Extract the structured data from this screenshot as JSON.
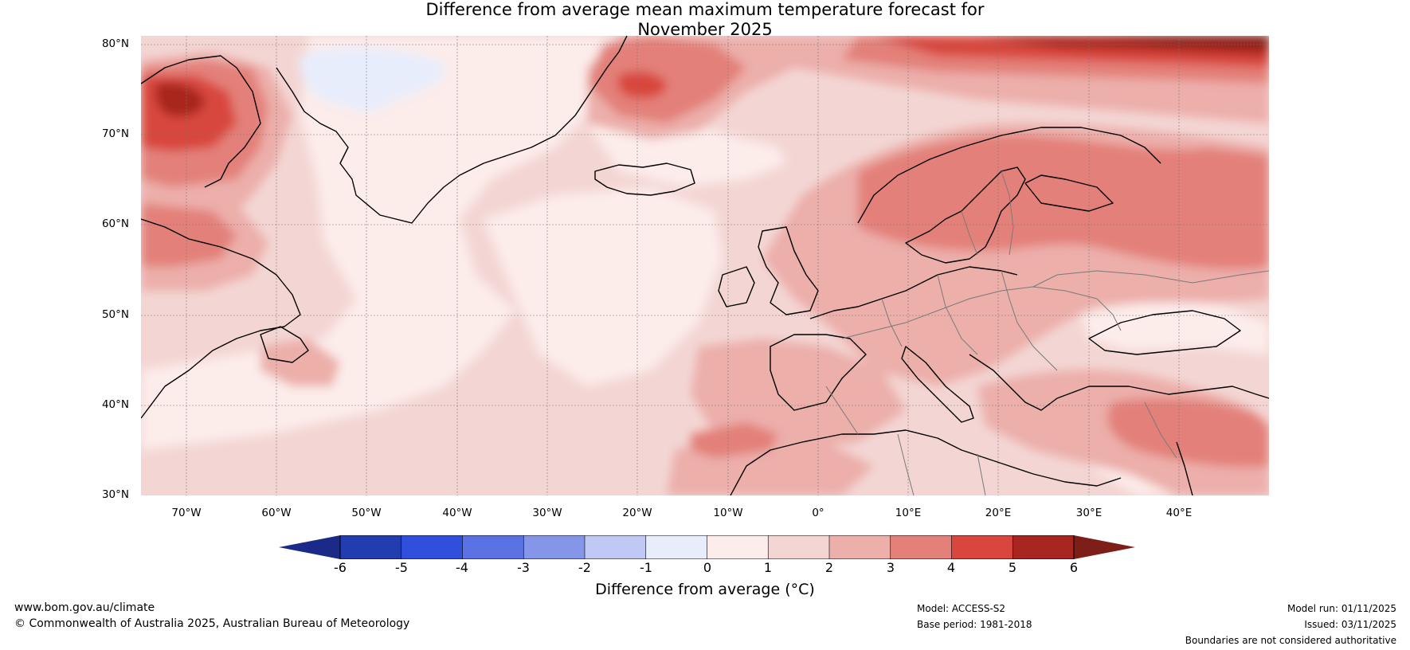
{
  "title": {
    "line1": "Difference from average mean maximum temperature forecast for",
    "line2": "November 2025"
  },
  "map": {
    "latitude_labels": [
      "80°N",
      "70°N",
      "60°N",
      "50°N",
      "40°N",
      "30°N"
    ],
    "longitude_labels": [
      "70°W",
      "60°W",
      "50°W",
      "40°W",
      "30°W",
      "20°W",
      "10°W",
      "0°",
      "10°E",
      "20°E",
      "30°E",
      "40°E"
    ],
    "background_color": "#f3d6d4"
  },
  "colorbar": {
    "ticks": [
      "-6",
      "-5",
      "-4",
      "-3",
      "-2",
      "-1",
      "0",
      "1",
      "2",
      "3",
      "4",
      "5",
      "6"
    ],
    "under_color": "#1b2a88",
    "over_color": "#7e1e18",
    "colors": [
      "#223db0",
      "#2f4fdc",
      "#5a72e3",
      "#8596e9",
      "#c0c9f3",
      "#e8edfc",
      "#fcecea",
      "#f3d6d4",
      "#ecafaa",
      "#e38079",
      "#d8463d",
      "#a8261f"
    ],
    "label": "Difference from average (°C)"
  },
  "footer": {
    "website": "www.bom.gov.au/climate",
    "copyright": "© Commonwealth of Australia 2025, Australian Bureau of Meteorology",
    "model": "Model: ACCESS-S2",
    "base_period": "Base period: 1981-2018",
    "model_run": "Model run: 01/11/2025",
    "issued": "Issued: 03/11/2025",
    "disclaimer": "Boundaries are not considered authoritative"
  }
}
